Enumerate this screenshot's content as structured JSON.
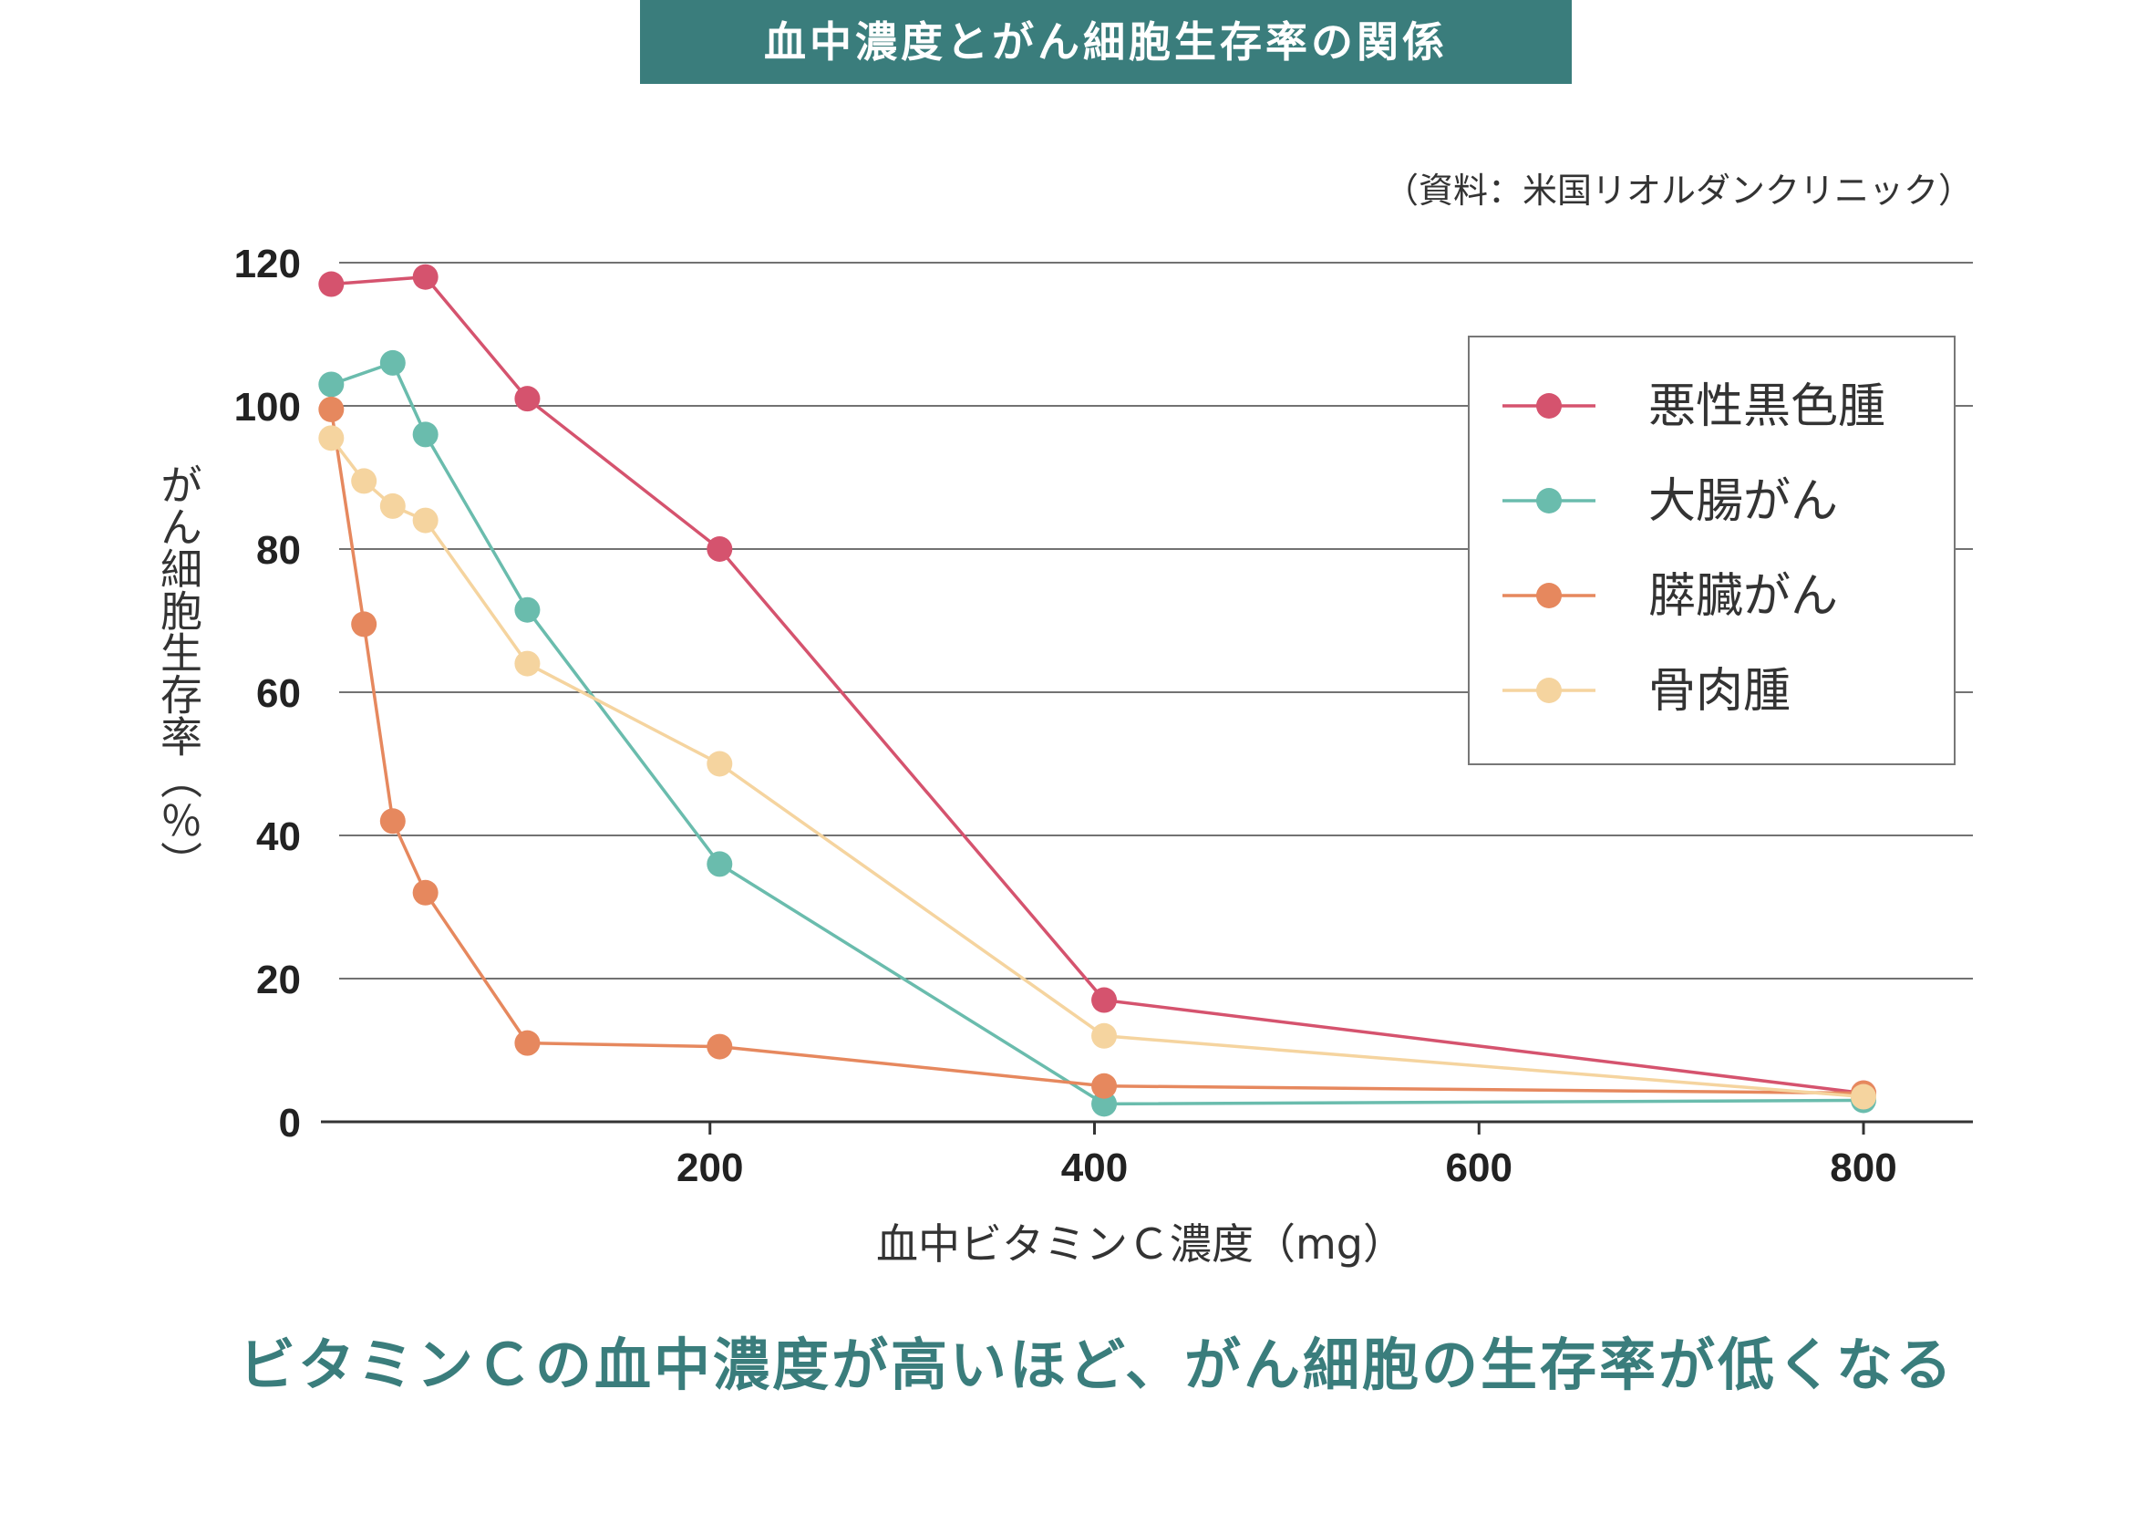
{
  "colors": {
    "title_bg": "#3a7d7c",
    "title_text": "#ffffff",
    "caption": "#3a7d7c",
    "grid": "#444444",
    "axis": "#333333"
  },
  "chart_data": {
    "type": "line",
    "title": "血中濃度とがん細胞生存率の関係",
    "source": "（資料：米国リオルダンクリニック）",
    "xlabel": "血中ビタミンＣ濃度（mg）",
    "ylabel": "がん細胞生存率（％）",
    "caption": "ビタミンＣの血中濃度が高いほど、がん細胞の生存率が低くなる",
    "xlim": [
      0,
      850
    ],
    "ylim": [
      0,
      120
    ],
    "x_ticks": [
      200,
      400,
      600,
      800
    ],
    "y_ticks": [
      0,
      20,
      40,
      60,
      80,
      100,
      120
    ],
    "grid": true,
    "legend_position": "top-right",
    "series": [
      {
        "name": "悪性黒色腫",
        "color": "#d5536e",
        "points": [
          [
            3,
            117
          ],
          [
            52,
            118
          ],
          [
            105,
            101
          ],
          [
            205,
            80
          ],
          [
            405,
            17
          ],
          [
            800,
            4
          ]
        ]
      },
      {
        "name": "大腸がん",
        "color": "#6abcad",
        "points": [
          [
            3,
            103
          ],
          [
            35,
            106
          ],
          [
            52,
            96
          ],
          [
            105,
            71.5
          ],
          [
            205,
            36
          ],
          [
            405,
            2.5
          ],
          [
            800,
            3
          ]
        ]
      },
      {
        "name": "膵臓がん",
        "color": "#e6885e",
        "points": [
          [
            3,
            99.5
          ],
          [
            20,
            69.5
          ],
          [
            35,
            42
          ],
          [
            52,
            32
          ],
          [
            105,
            11
          ],
          [
            205,
            10.5
          ],
          [
            405,
            5
          ],
          [
            800,
            4
          ]
        ]
      },
      {
        "name": "骨肉腫",
        "color": "#f5d49f",
        "points": [
          [
            3,
            95.5
          ],
          [
            20,
            89.5
          ],
          [
            35,
            86
          ],
          [
            52,
            84
          ],
          [
            105,
            64
          ],
          [
            205,
            50
          ],
          [
            405,
            12
          ],
          [
            800,
            3.5
          ]
        ]
      }
    ]
  }
}
